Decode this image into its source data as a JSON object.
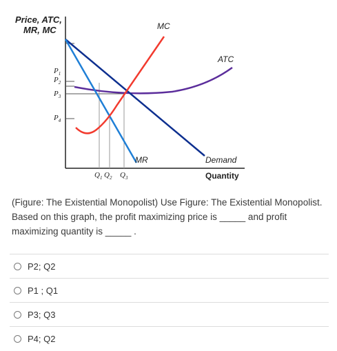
{
  "figure": {
    "y_axis_title_line1": "Price, ATC,",
    "y_axis_title_line2": "MR, MC",
    "x_axis_title": "Quantity",
    "price_ticks": [
      "P1",
      "P2",
      "P3",
      "P4"
    ],
    "quantity_ticks": [
      "Q1",
      "Q2",
      "Q3"
    ],
    "curve_labels": {
      "mc": "MC",
      "atc": "ATC",
      "mr": "MR",
      "demand": "Demand"
    },
    "colors": {
      "mc": "#f23a2e",
      "atc": "#5b2d9b",
      "mr": "#1f7fd6",
      "demand": "#0d2f8f",
      "axis": "#222222"
    }
  },
  "question": {
    "text": "(Figure: The Existential Monopolist) Use Figure: The Existential Monopolist. Based on this graph, the profit maximizing price is _____ and profit maximizing quantity is _____ ."
  },
  "options": [
    {
      "label": "P2; Q2",
      "selected": false
    },
    {
      "label": "P1 ; Q1",
      "selected": false
    },
    {
      "label": "P3; Q3",
      "selected": false
    },
    {
      "label": "P4; Q2",
      "selected": false
    }
  ]
}
